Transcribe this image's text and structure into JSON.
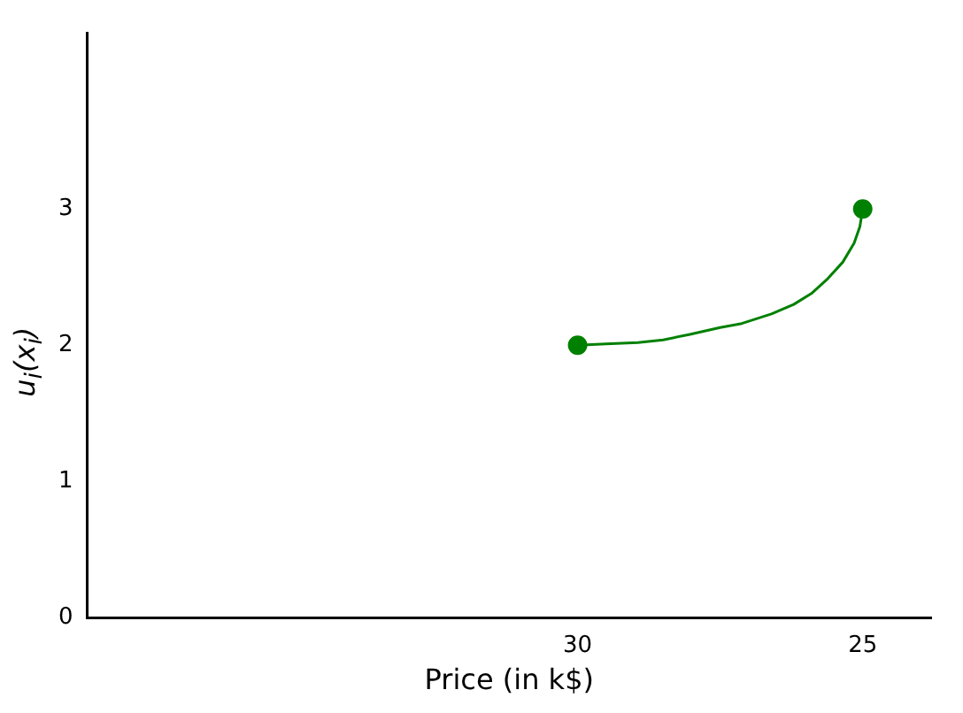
{
  "chart_data": {
    "type": "line",
    "xlabel": "Price (in k$)",
    "ylabel": "u$_{i}$(x$_{i}$)",
    "xlim": [
      38.6,
      23.8
    ],
    "xticks": [
      30,
      25
    ],
    "ylim": [
      0,
      4.29
    ],
    "yticks": [
      0,
      1,
      2,
      3
    ],
    "grid": false,
    "legend": false,
    "marker": "none",
    "series": [
      {
        "color": "#008000",
        "x": [
          30,
          29.5,
          28.94,
          28.5,
          28.03,
          27.5,
          27.12,
          26.6,
          26.21,
          25.9,
          25.61,
          25.35,
          25.15,
          25.05,
          25
        ],
        "values": [
          2,
          2.01,
          2.02,
          2.04,
          2.08,
          2.13,
          2.16,
          2.23,
          2.3,
          2.38,
          2.49,
          2.61,
          2.75,
          2.87,
          3
        ]
      },
      {
        "type": "scatter",
        "color": "#008000",
        "marker": "circle",
        "x": [
          30,
          25
        ],
        "values": [
          2,
          3
        ]
      }
    ]
  }
}
